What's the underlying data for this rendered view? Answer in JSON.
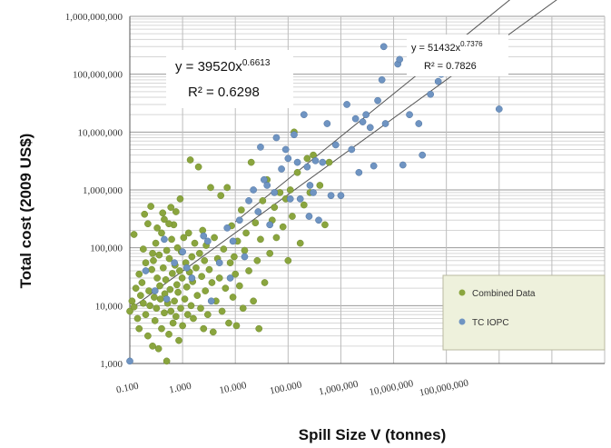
{
  "chart_data": {
    "type": "scatter",
    "xlabel": "Spill Size V (tonnes)",
    "ylabel": "Total cost  (2009 US$)",
    "xscale": "log",
    "yscale": "log",
    "xlim": [
      0.1,
      100000000
    ],
    "ylim": [
      1000,
      1000000000
    ],
    "grid": true,
    "legend_placement": "bottom-right",
    "x_tick_labels": [
      "0.100",
      "1.000",
      "10.000",
      "100.000",
      "1,000,000",
      "10,000,000",
      "100,000,000"
    ],
    "y_tick_labels": [
      "1,000",
      "10,000",
      "100,000",
      "1,000,000",
      "10,000,000",
      "100,000,000",
      "1,000,000,000"
    ],
    "colors": {
      "combined": "#8aa53e",
      "tc_iopc": "#6f94c2",
      "trendline": "#555555"
    },
    "annotations": [
      {
        "line1": "y = 39520x",
        "exp": "0.6613",
        "line2": "R² = 0.6298"
      },
      {
        "line1": "y = 51432x",
        "exp": "0.7376",
        "line2": "R² = 0.7826"
      }
    ],
    "series": [
      {
        "name": "Combined Data",
        "color": "#8aa53e",
        "trendline": {
          "a": 39520,
          "b": 0.6613
        },
        "points": [
          [
            0.1,
            8000
          ],
          [
            0.11,
            12000
          ],
          [
            0.12,
            9500
          ],
          [
            0.13,
            20000
          ],
          [
            0.14,
            6000
          ],
          [
            0.15,
            35000
          ],
          [
            0.15,
            4000
          ],
          [
            0.16,
            15000
          ],
          [
            0.17,
            25000
          ],
          [
            0.18,
            11000
          ],
          [
            0.19,
            380000
          ],
          [
            0.2,
            55000
          ],
          [
            0.2,
            7000
          ],
          [
            0.22,
            3000
          ],
          [
            0.23,
            18000
          ],
          [
            0.24,
            10000
          ],
          [
            0.25,
            520000
          ],
          [
            0.26,
            42000
          ],
          [
            0.27,
            2000
          ],
          [
            0.28,
            60000
          ],
          [
            0.29,
            14000
          ],
          [
            0.3,
            5500
          ],
          [
            0.31,
            120000
          ],
          [
            0.32,
            9000
          ],
          [
            0.33,
            30000
          ],
          [
            0.35,
            1800
          ],
          [
            0.36,
            75000
          ],
          [
            0.37,
            22000
          ],
          [
            0.38,
            13000
          ],
          [
            0.4,
            4000
          ],
          [
            0.42,
            400000
          ],
          [
            0.43,
            45000
          ],
          [
            0.45,
            7500
          ],
          [
            0.46,
            16000
          ],
          [
            0.48,
            28000
          ],
          [
            0.5,
            1100
          ],
          [
            0.5,
            90000
          ],
          [
            0.52,
            11000
          ],
          [
            0.55,
            3200
          ],
          [
            0.56,
            65000
          ],
          [
            0.58,
            19000
          ],
          [
            0.6,
            8000
          ],
          [
            0.62,
            140000
          ],
          [
            0.64,
            36000
          ],
          [
            0.66,
            5000
          ],
          [
            0.68,
            250000
          ],
          [
            0.7,
            12000
          ],
          [
            0.72,
            50000
          ],
          [
            0.75,
            6500
          ],
          [
            0.78,
            23000
          ],
          [
            0.8,
            100000
          ],
          [
            0.82,
            17000
          ],
          [
            0.85,
            2500
          ],
          [
            0.88,
            40000
          ],
          [
            0.9,
            700000
          ],
          [
            0.92,
            9000
          ],
          [
            0.95,
            85000
          ],
          [
            0.98,
            30000
          ],
          [
            1.0,
            4500
          ],
          [
            1.05,
            150000
          ],
          [
            1.1,
            13000
          ],
          [
            1.15,
            55000
          ],
          [
            1.2,
            21000
          ],
          [
            1.25,
            7000
          ],
          [
            1.3,
            180000
          ],
          [
            1.35,
            38000
          ],
          [
            1.4,
            3300000
          ],
          [
            1.45,
            10000
          ],
          [
            1.5,
            70000
          ],
          [
            1.55,
            26000
          ],
          [
            1.6,
            6000
          ],
          [
            1.7,
            120000
          ],
          [
            1.8,
            45000
          ],
          [
            1.9,
            15000
          ],
          [
            2.0,
            2500000
          ],
          [
            2.1,
            80000
          ],
          [
            2.2,
            9000
          ],
          [
            2.3,
            32000
          ],
          [
            2.4,
            200000
          ],
          [
            2.5,
            4000
          ],
          [
            2.6,
            60000
          ],
          [
            2.7,
            18000
          ],
          [
            2.8,
            110000
          ],
          [
            3.0,
            7000
          ],
          [
            3.2,
            42000
          ],
          [
            3.4,
            1100000
          ],
          [
            3.6,
            25000
          ],
          [
            3.8,
            3500
          ],
          [
            4.0,
            150000
          ],
          [
            4.3,
            12000
          ],
          [
            4.6,
            65000
          ],
          [
            5.0,
            30000
          ],
          [
            5.3,
            800000
          ],
          [
            5.6,
            8000
          ],
          [
            6.0,
            95000
          ],
          [
            6.5,
            20000
          ],
          [
            7.0,
            1100000
          ],
          [
            7.5,
            5000
          ],
          [
            8.0,
            55000
          ],
          [
            8.5,
            240000
          ],
          [
            9.0,
            14000
          ],
          [
            9.5,
            70000
          ],
          [
            10,
            35000
          ],
          [
            10.5,
            4500
          ],
          [
            11,
            130000
          ],
          [
            12,
            22000
          ],
          [
            13,
            450000
          ],
          [
            14,
            9000
          ],
          [
            15,
            90000
          ],
          [
            16,
            180000
          ],
          [
            18,
            40000
          ],
          [
            20,
            3000000
          ],
          [
            22,
            12000
          ],
          [
            24,
            270000
          ],
          [
            26,
            60000
          ],
          [
            28,
            4000
          ],
          [
            30,
            140000
          ],
          [
            33,
            650000
          ],
          [
            36,
            25000
          ],
          [
            40,
            1500000
          ],
          [
            45,
            80000
          ],
          [
            50,
            300000
          ],
          [
            55,
            500000
          ],
          [
            60,
            150000
          ],
          [
            70,
            900000
          ],
          [
            80,
            230000
          ],
          [
            90,
            700000
          ],
          [
            100,
            60000
          ],
          [
            110,
            1000000
          ],
          [
            120,
            350000
          ],
          [
            130,
            10000000
          ],
          [
            150,
            2000000
          ],
          [
            170,
            120000
          ],
          [
            200,
            550000
          ],
          [
            230,
            3500000
          ],
          [
            260,
            900000
          ],
          [
            300,
            4000000
          ],
          [
            400,
            1200000
          ],
          [
            500,
            250000
          ],
          [
            600,
            3000000
          ],
          [
            0.12,
            170000
          ],
          [
            0.18,
            95000
          ],
          [
            0.22,
            260000
          ],
          [
            0.27,
            80000
          ],
          [
            0.33,
            220000
          ],
          [
            0.4,
            180000
          ],
          [
            0.45,
            310000
          ],
          [
            0.55,
            260000
          ],
          [
            0.6,
            500000
          ],
          [
            0.75,
            420000
          ]
        ]
      },
      {
        "name": "TC IOPC",
        "color": "#6f94c2",
        "trendline": {
          "a": 51432,
          "b": 0.7376
        },
        "points": [
          [
            0.1,
            1100
          ],
          [
            0.2,
            40000
          ],
          [
            0.3,
            18000
          ],
          [
            0.45,
            140000
          ],
          [
            0.5,
            13000
          ],
          [
            0.7,
            55000
          ],
          [
            1.0,
            85000
          ],
          [
            1.5,
            30000
          ],
          [
            2.5,
            160000
          ],
          [
            3.5,
            12000
          ],
          [
            5,
            55000
          ],
          [
            7,
            220000
          ],
          [
            9,
            130000
          ],
          [
            12,
            300000
          ],
          [
            15,
            70000
          ],
          [
            18,
            650000
          ],
          [
            22,
            1000000
          ],
          [
            27,
            420000
          ],
          [
            30,
            5500000
          ],
          [
            35,
            1500000
          ],
          [
            45,
            250000
          ],
          [
            55,
            900000
          ],
          [
            60,
            8000000
          ],
          [
            75,
            2300000
          ],
          [
            90,
            5000000
          ],
          [
            100,
            3500000
          ],
          [
            110,
            700000
          ],
          [
            130,
            9000000
          ],
          [
            150,
            3000000
          ],
          [
            170,
            700000
          ],
          [
            200,
            20000000
          ],
          [
            230,
            2500000
          ],
          [
            260,
            1200000
          ],
          [
            300,
            900000
          ],
          [
            330,
            3200000
          ],
          [
            380,
            300000
          ],
          [
            450,
            3000000
          ],
          [
            550,
            14000000
          ],
          [
            650,
            800000
          ],
          [
            800,
            6000000
          ],
          [
            1000,
            800000
          ],
          [
            1300,
            30000000
          ],
          [
            1600,
            5000000
          ],
          [
            1900,
            17000000
          ],
          [
            2200,
            2000000
          ],
          [
            2600,
            15000000
          ],
          [
            3000,
            20000000
          ],
          [
            3600,
            12000000
          ],
          [
            4200,
            2600000
          ],
          [
            5000,
            35000000
          ],
          [
            6000,
            80000000
          ],
          [
            6500,
            300000000
          ],
          [
            7000,
            14000000
          ],
          [
            12000,
            150000000
          ],
          [
            13000,
            180000000
          ],
          [
            30000,
            14000000
          ],
          [
            70000,
            75000000
          ],
          [
            75000,
            210000000
          ],
          [
            80000,
            100000000
          ],
          [
            90000,
            110000000
          ],
          [
            20000,
            20000000
          ],
          [
            50000,
            45000000
          ],
          [
            35000,
            4000000
          ],
          [
            1000000,
            25000000
          ],
          [
            15000,
            2700000
          ],
          [
            250,
            350000
          ],
          [
            40,
            1200000
          ],
          [
            8,
            30000
          ],
          [
            3,
            130000
          ],
          [
            1.2,
            45000
          ]
        ]
      }
    ]
  }
}
